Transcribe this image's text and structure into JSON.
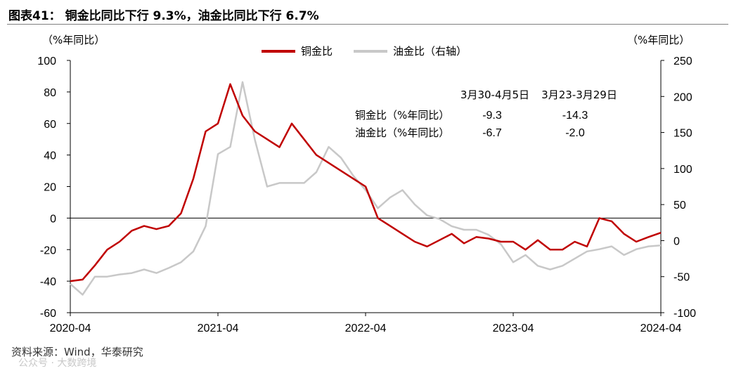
{
  "title": "图表41： 铜金比同比下行 9.3%，油金比同比下行 6.7%",
  "left_unit": "（%年同比）",
  "right_unit": "（%年同比）",
  "source": "资料来源：Wind，华泰研究",
  "watermark": "公众号 · 大数跨境",
  "colors": {
    "copper_gold": "#c00000",
    "oil_gold": "#c8c8c8",
    "axis": "#000000"
  },
  "table": {
    "headers": [
      "3月30-4月5日",
      "3月23-3月29日"
    ],
    "rows": [
      {
        "label": "铜金比（%年同比）",
        "values": [
          "-9.3",
          "-14.3"
        ]
      },
      {
        "label": "油金比（%年同比）",
        "values": [
          "-6.7",
          "-2.0"
        ]
      }
    ]
  },
  "chart_data": {
    "type": "line",
    "title": "铜金比同比下行 9.3%，油金比同比下行 6.7%",
    "xlabel": "",
    "ylabel": "%年同比",
    "y2label": "%年同比",
    "ylim": [
      -60,
      100
    ],
    "y2lim": [
      -100,
      250
    ],
    "yticks": [
      "100",
      "80",
      "60",
      "40",
      "20",
      "0",
      "-20",
      "-40",
      "-60"
    ],
    "y2ticks": [
      "250",
      "200",
      "150",
      "100",
      "50",
      "0",
      "-50",
      "-100"
    ],
    "xticks": [
      "2020-04",
      "2021-04",
      "2022-04",
      "2023-04",
      "2024-04"
    ],
    "x_range": [
      "2020-04",
      "2024-04"
    ],
    "grid": false,
    "legend_position": "top",
    "series": [
      {
        "name": "铜金比",
        "axis": "left",
        "points": [
          [
            "2020-04",
            -40
          ],
          [
            "2020-05",
            -39
          ],
          [
            "2020-06",
            -30
          ],
          [
            "2020-07",
            -20
          ],
          [
            "2020-08",
            -15
          ],
          [
            "2020-09",
            -8
          ],
          [
            "2020-10",
            -5
          ],
          [
            "2020-11",
            -7
          ],
          [
            "2020-12",
            -5
          ],
          [
            "2021-01",
            3
          ],
          [
            "2021-02",
            25
          ],
          [
            "2021-03",
            55
          ],
          [
            "2021-04",
            60
          ],
          [
            "2021-05",
            85
          ],
          [
            "2021-06",
            65
          ],
          [
            "2021-07",
            55
          ],
          [
            "2021-08",
            50
          ],
          [
            "2021-09",
            45
          ],
          [
            "2021-10",
            60
          ],
          [
            "2021-11",
            50
          ],
          [
            "2021-12",
            40
          ],
          [
            "2022-01",
            35
          ],
          [
            "2022-02",
            30
          ],
          [
            "2022-03",
            25
          ],
          [
            "2022-04",
            20
          ],
          [
            "2022-05",
            0
          ],
          [
            "2022-06",
            -5
          ],
          [
            "2022-07",
            -10
          ],
          [
            "2022-08",
            -15
          ],
          [
            "2022-09",
            -18
          ],
          [
            "2022-10",
            -14
          ],
          [
            "2022-11",
            -10
          ],
          [
            "2022-12",
            -16
          ],
          [
            "2023-01",
            -12
          ],
          [
            "2023-02",
            -13
          ],
          [
            "2023-03",
            -15
          ],
          [
            "2023-04",
            -15
          ],
          [
            "2023-05",
            -20
          ],
          [
            "2023-06",
            -14
          ],
          [
            "2023-07",
            -20
          ],
          [
            "2023-08",
            -20
          ],
          [
            "2023-09",
            -15
          ],
          [
            "2023-10",
            -18
          ],
          [
            "2023-11",
            0
          ],
          [
            "2023-12",
            -2
          ],
          [
            "2024-01",
            -10
          ],
          [
            "2024-02",
            -15
          ],
          [
            "2024-03",
            -12
          ],
          [
            "2024-04",
            -9.3
          ]
        ]
      },
      {
        "name": "油金比（右轴）",
        "axis": "right",
        "points": [
          [
            "2020-04",
            -60
          ],
          [
            "2020-05",
            -75
          ],
          [
            "2020-06",
            -50
          ],
          [
            "2020-07",
            -50
          ],
          [
            "2020-08",
            -47
          ],
          [
            "2020-09",
            -45
          ],
          [
            "2020-10",
            -40
          ],
          [
            "2020-11",
            -45
          ],
          [
            "2020-12",
            -38
          ],
          [
            "2021-01",
            -30
          ],
          [
            "2021-02",
            -15
          ],
          [
            "2021-03",
            20
          ],
          [
            "2021-04",
            120
          ],
          [
            "2021-05",
            130
          ],
          [
            "2021-06",
            220
          ],
          [
            "2021-07",
            140
          ],
          [
            "2021-08",
            75
          ],
          [
            "2021-09",
            80
          ],
          [
            "2021-10",
            80
          ],
          [
            "2021-11",
            80
          ],
          [
            "2021-12",
            95
          ],
          [
            "2022-01",
            130
          ],
          [
            "2022-02",
            115
          ],
          [
            "2022-03",
            90
          ],
          [
            "2022-04",
            70
          ],
          [
            "2022-05",
            45
          ],
          [
            "2022-06",
            60
          ],
          [
            "2022-07",
            70
          ],
          [
            "2022-08",
            50
          ],
          [
            "2022-09",
            35
          ],
          [
            "2022-10",
            30
          ],
          [
            "2022-11",
            20
          ],
          [
            "2022-12",
            15
          ],
          [
            "2023-01",
            15
          ],
          [
            "2023-02",
            8
          ],
          [
            "2023-03",
            -5
          ],
          [
            "2023-04",
            -30
          ],
          [
            "2023-05",
            -20
          ],
          [
            "2023-06",
            -35
          ],
          [
            "2023-07",
            -40
          ],
          [
            "2023-08",
            -35
          ],
          [
            "2023-09",
            -25
          ],
          [
            "2023-10",
            -15
          ],
          [
            "2023-11",
            -12
          ],
          [
            "2023-12",
            -8
          ],
          [
            "2024-01",
            -20
          ],
          [
            "2024-02",
            -12
          ],
          [
            "2024-03",
            -8
          ],
          [
            "2024-04",
            -6.7
          ]
        ]
      }
    ]
  }
}
